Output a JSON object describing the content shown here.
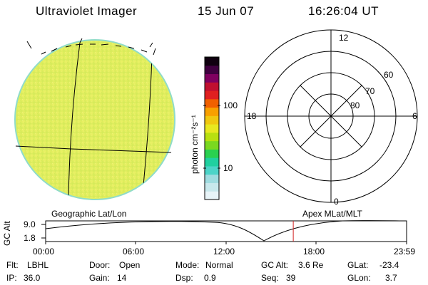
{
  "header": {
    "instrument": "Ultraviolet Imager",
    "date": "15 Jun 07",
    "time": "16:26:04 UT"
  },
  "colorbar": {
    "unit_label": "photon cm⁻²s⁻¹",
    "ticks": [
      "100",
      "10"
    ],
    "colors": [
      "#e8f4f8",
      "#c8e8ec",
      "#9fdce0",
      "#4cd4c8",
      "#20d0a0",
      "#2ad050",
      "#7ad820",
      "#b8e010",
      "#e8e820",
      "#f0c810",
      "#f8a000",
      "#f06000",
      "#e02020",
      "#c01030",
      "#800060",
      "#400040",
      "#100010"
    ]
  },
  "polar": {
    "top_label": "12",
    "bottom_label": "0",
    "left_label": "18",
    "right_label": "6",
    "lat_labels": [
      "60",
      "70",
      "80"
    ]
  },
  "labels": {
    "geographic": "Geographic Lat/Lon",
    "apex": "Apex MLat/MLT"
  },
  "altitude_plot": {
    "axis_title": "GC Alt",
    "y_ticks": [
      "9.0",
      "1.8"
    ],
    "x_ticks": [
      "00:00",
      "06:00",
      "12:00",
      "18:00",
      "23:59"
    ],
    "current_time_fraction": 0.686
  },
  "status": {
    "row1": [
      {
        "label": "Flt:",
        "value": "LBHL"
      },
      {
        "label": "Door:",
        "value": "Open"
      },
      {
        "label": "Mode:",
        "value": "Normal"
      },
      {
        "label": "GC Alt:",
        "value": "3.6 Re"
      },
      {
        "label": "GLat:",
        "value": "-23.4"
      }
    ],
    "row2": [
      {
        "label": "IP:",
        "value": "36.0"
      },
      {
        "label": "Gain:",
        "value": "14"
      },
      {
        "label": "Dsp:",
        "value": "0.9"
      },
      {
        "label": "Seq:",
        "value": "39"
      },
      {
        "label": "GLon:",
        "value": "3.7"
      }
    ]
  }
}
